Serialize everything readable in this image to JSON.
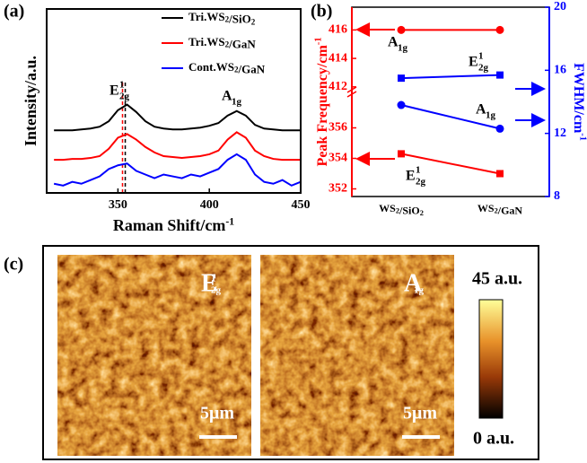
{
  "panel_labels": [
    "(a)",
    "(b)",
    "(c)"
  ],
  "chart_data": [
    {
      "type": "line",
      "x_label": "Raman Shift/cm-1",
      "y_label": "Intensity/a.u.",
      "x": [
        315,
        320,
        325,
        330,
        335,
        340,
        345,
        350,
        355,
        360,
        365,
        370,
        375,
        380,
        385,
        390,
        395,
        400,
        405,
        410,
        415,
        420,
        425,
        430,
        435,
        440,
        445,
        450
      ],
      "xlim": [
        311,
        450
      ],
      "xticks": [
        350,
        400,
        450
      ],
      "ylim": [
        0,
        10
      ],
      "series": [
        {
          "name": "Tri.WS2/SiO2",
          "color": "#000000",
          "values": [
            3.4,
            3.4,
            3.4,
            3.45,
            3.5,
            3.6,
            3.9,
            4.5,
            4.8,
            4.4,
            3.9,
            3.6,
            3.5,
            3.45,
            3.45,
            3.5,
            3.55,
            3.65,
            3.8,
            4.2,
            4.45,
            4.2,
            3.7,
            3.5,
            3.45,
            3.4,
            3.4,
            3.4
          ]
        },
        {
          "name": "Tri.WS2/GaN",
          "color": "#ff0000",
          "values": [
            1.8,
            1.8,
            1.85,
            1.85,
            1.9,
            2.0,
            2.4,
            3.0,
            3.2,
            2.9,
            2.5,
            2.2,
            2.0,
            1.95,
            1.9,
            1.95,
            2.0,
            2.1,
            2.3,
            2.9,
            3.3,
            3.0,
            2.3,
            2.0,
            1.85,
            1.8,
            1.8,
            1.8
          ]
        },
        {
          "name": "Cont.WS2/GaN",
          "color": "#0000ff",
          "values": [
            0.5,
            0.4,
            0.6,
            0.5,
            0.7,
            0.9,
            1.3,
            1.5,
            1.6,
            1.2,
            1.0,
            0.8,
            1.0,
            0.9,
            0.8,
            1.0,
            0.9,
            1.1,
            1.3,
            1.8,
            2.1,
            1.8,
            1.0,
            0.6,
            0.5,
            0.7,
            0.4,
            0.6
          ]
        }
      ],
      "vlines": [
        {
          "x": 354,
          "color": "#000000"
        },
        {
          "x": 352.5,
          "color": "#ff0000"
        }
      ],
      "annotations": [
        {
          "base": "E",
          "sup": "1",
          "sub": "2g"
        },
        {
          "base": "A",
          "sub": "1g"
        }
      ]
    },
    {
      "type": "dual",
      "categories": [
        "WS2/SiO2",
        "WS2/GaN"
      ],
      "y_label": "Peak Frequency/cm-1",
      "y2_label": "FWHM/cm-1",
      "ylim": [
        351.5,
        417.6
      ],
      "ybreak": [
        358.5,
        411.8
      ],
      "yticks": [
        352,
        354,
        356,
        412,
        414,
        416
      ],
      "y2lim": [
        8,
        20
      ],
      "y2ticks": [
        8,
        12,
        16,
        20
      ],
      "series": [
        {
          "color": "#ff0000",
          "marker": "circle",
          "values": [
            416,
            416
          ]
        },
        {
          "color": "#ff0000",
          "marker": "square",
          "values": [
            354.3,
            353.0
          ]
        },
        {
          "color": "#0000ff",
          "marker": "square",
          "axis": "y2",
          "values": [
            15.5,
            15.7
          ]
        },
        {
          "color": "#0000ff",
          "marker": "circle",
          "axis": "y2",
          "values": [
            13.8,
            12.3
          ]
        }
      ],
      "annotations": [
        {
          "base": "A",
          "sub": "1g"
        },
        {
          "base": "E",
          "sup": "1",
          "sub": "2g"
        },
        {
          "base": "A",
          "sub": "1g"
        },
        {
          "base": "E",
          "sup": "1",
          "sub": "2g"
        }
      ]
    },
    {
      "type": "heatmap",
      "maps": [
        {
          "label": {
            "base": "E",
            "sup": "1",
            "sub": "2g"
          },
          "scale_bar": "5μm"
        },
        {
          "label": {
            "base": "A",
            "sub": "1g"
          },
          "scale_bar": "5μm"
        }
      ],
      "colorbar": {
        "max_label": "45 a.u.",
        "min_label": "0 a.u."
      }
    }
  ]
}
